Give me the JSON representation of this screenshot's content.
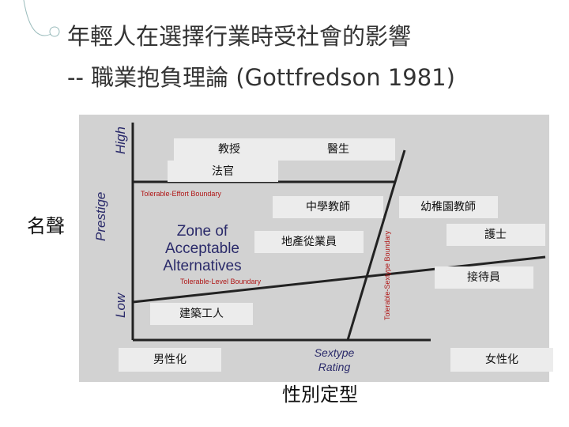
{
  "header": {
    "title_lines": [
      "年輕人在選擇行業時受社會的影響",
      "-- 職業抱負理論 (Gottfredson 1981)"
    ]
  },
  "diagram": {
    "y_axis": {
      "high": "High",
      "label": "Prestige",
      "low": "Low"
    },
    "x_axis": {
      "label_lines": [
        "Sextype",
        "Rating"
      ]
    },
    "boundaries": {
      "effort": "Tolerable-Effort Boundary",
      "level": "Tolerable-Level Boundary",
      "sextype": "Tolerable-Sextype Boundary"
    },
    "zone_lines": [
      "Zone of",
      "Acceptable",
      "Alternatives"
    ],
    "occupations": [
      "教授",
      "醫生",
      "法官",
      "中學教師",
      "幼稚園教師",
      "地產從業員",
      "護士",
      "接待員",
      "建築工人"
    ],
    "sextype_ends": {
      "masculine": "男性化",
      "feminine": "女性化"
    },
    "side_labels": {
      "prestige": "名聲",
      "sextype": "性別定型"
    }
  }
}
